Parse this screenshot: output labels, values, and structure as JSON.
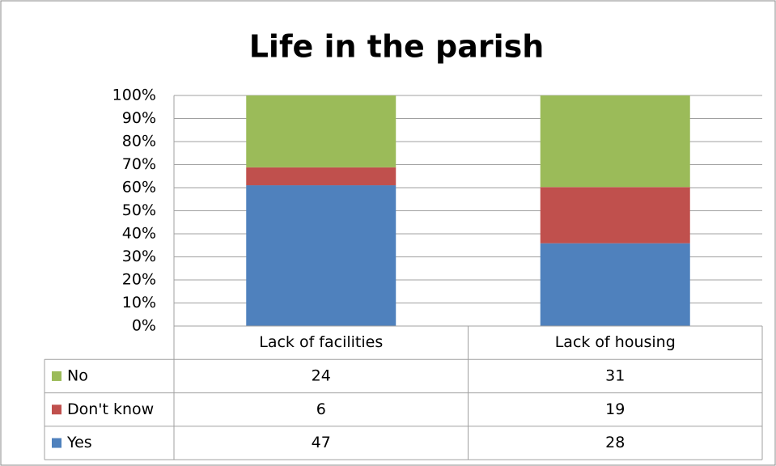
{
  "chart_data": {
    "type": "stacked100",
    "title": "Life in the parish",
    "categories": [
      "Lack of facilities",
      "Lack of housing"
    ],
    "series": [
      {
        "name": "No",
        "color": "#9bbb59",
        "values": [
          24,
          31
        ]
      },
      {
        "name": "Don't know",
        "color": "#c0504d",
        "values": [
          6,
          19
        ]
      },
      {
        "name": "Yes",
        "color": "#4f81bd",
        "values": [
          47,
          28
        ]
      }
    ],
    "ylim": [
      0,
      100
    ],
    "yticks": [
      {
        "value": 0,
        "label": "0%"
      },
      {
        "value": 10,
        "label": "10%"
      },
      {
        "value": 20,
        "label": "20%"
      },
      {
        "value": 30,
        "label": "30%"
      },
      {
        "value": 40,
        "label": "40%"
      },
      {
        "value": 50,
        "label": "50%"
      },
      {
        "value": 60,
        "label": "60%"
      },
      {
        "value": 70,
        "label": "70%"
      },
      {
        "value": 80,
        "label": "80%"
      },
      {
        "value": 90,
        "label": "90%"
      },
      {
        "value": 100,
        "label": "100%"
      }
    ],
    "grid": true
  }
}
